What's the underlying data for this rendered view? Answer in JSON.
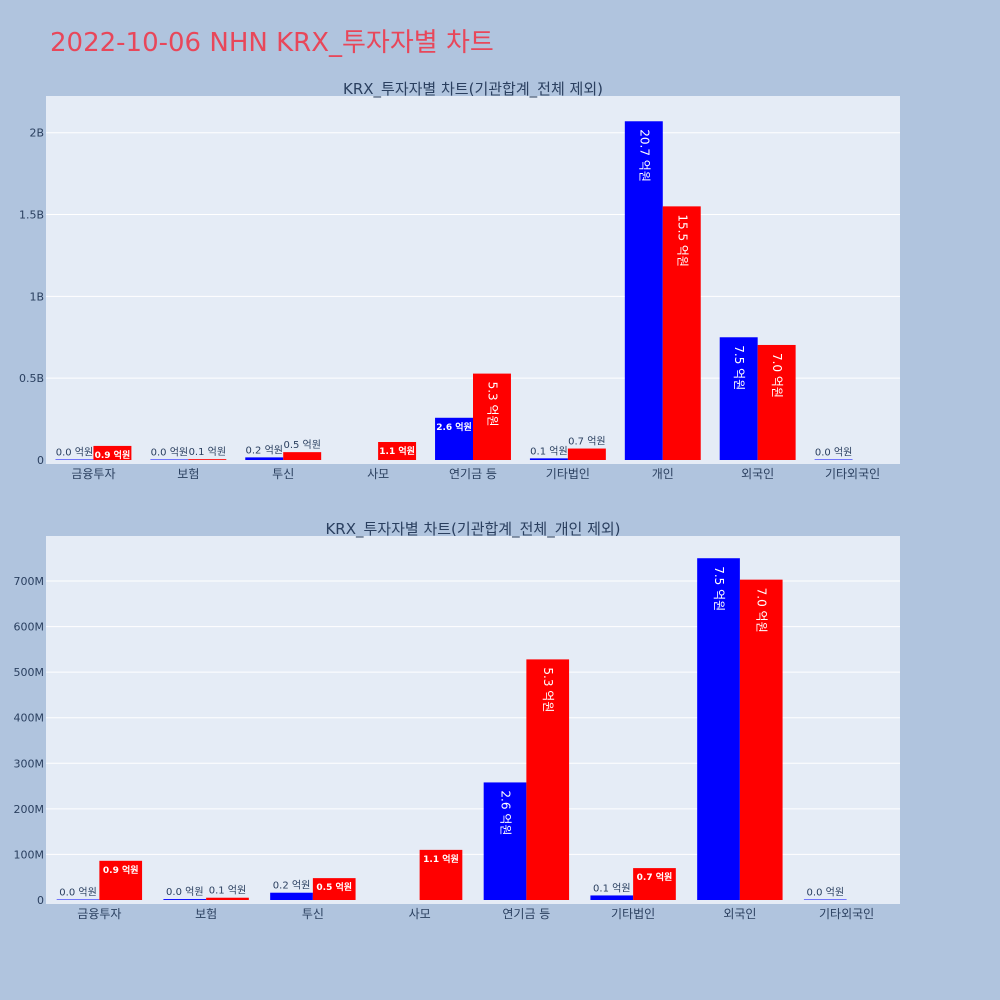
{
  "page_title": "2022-10-06 NHN KRX_투자자별 차트",
  "colors": {
    "buy": "#0000ff",
    "sell": "#ff0000",
    "plot_bg": "#e5ecf6",
    "paper_bg": "#b0c4de",
    "title": "#e8475a"
  },
  "chart_data": [
    {
      "type": "bar",
      "title": "KRX_투자자별 차트(기관합계_전체 제외)",
      "categories": [
        "금융투자",
        "보험",
        "투신",
        "사모",
        "연기금 등",
        "기타법인",
        "개인",
        "외국인",
        "기타외국인"
      ],
      "ytick_labels": [
        "0",
        "0.5B",
        "1B",
        "1.5B",
        "2B"
      ],
      "ytick_values": [
        0,
        500000000,
        1000000000,
        1500000000,
        2000000000
      ],
      "ylim": [
        0,
        2200000000
      ],
      "grid": true,
      "series": [
        {
          "values": [
            0,
            2000000,
            16000000,
            null,
            258000000,
            10000000,
            2070000000,
            750000000,
            0
          ],
          "labels": [
            "0.0 억원",
            "0.0 억원",
            "0.2 억원",
            "",
            "2.6 억원",
            "0.1 억원",
            "20.7 억원",
            "7.5 억원",
            "0.0 억원"
          ]
        },
        {
          "values": [
            86000000,
            5000000,
            48000000,
            110000000,
            528000000,
            70000000,
            1550000000,
            703000000,
            null
          ],
          "labels": [
            "0.9 억원",
            "0.1 억원",
            "0.5 억원",
            "1.1 억원",
            "5.3 억원",
            "0.7 억원",
            "15.5 억원",
            "7.0 억원",
            ""
          ]
        }
      ]
    },
    {
      "type": "bar",
      "title": "KRX_투자자별 차트(기관합계_전체_개인 제외)",
      "categories": [
        "금융투자",
        "보험",
        "투신",
        "사모",
        "연기금 등",
        "기타법인",
        "외국인",
        "기타외국인"
      ],
      "ytick_labels": [
        "0",
        "100M",
        "200M",
        "300M",
        "400M",
        "500M",
        "600M",
        "700M"
      ],
      "ytick_values": [
        0,
        100000000,
        200000000,
        300000000,
        400000000,
        500000000,
        600000000,
        700000000
      ],
      "ylim": [
        0,
        790000000
      ],
      "grid": true,
      "series": [
        {
          "values": [
            0,
            2000000,
            16000000,
            null,
            258000000,
            10000000,
            750000000,
            0
          ],
          "labels": [
            "0.0 억원",
            "0.0 억원",
            "0.2 억원",
            "",
            "2.6 억원",
            "0.1 억원",
            "7.5 억원",
            "0.0 억원"
          ]
        },
        {
          "values": [
            86000000,
            5000000,
            48000000,
            110000000,
            528000000,
            70000000,
            703000000,
            null
          ],
          "labels": [
            "0.9 억원",
            "0.1 억원",
            "0.5 억원",
            "1.1 억원",
            "5.3 억원",
            "0.7 억원",
            "7.0 억원",
            ""
          ]
        }
      ]
    }
  ]
}
